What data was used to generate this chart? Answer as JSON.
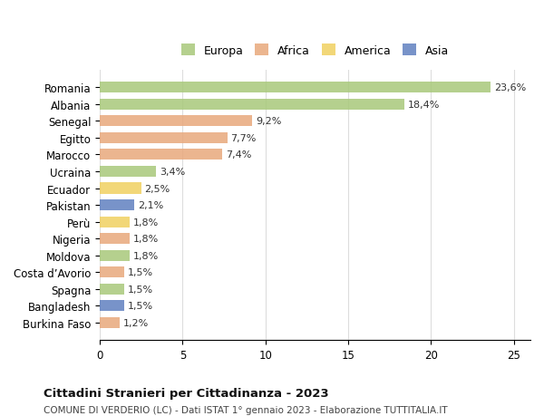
{
  "categories": [
    "Romania",
    "Albania",
    "Senegal",
    "Egitto",
    "Marocco",
    "Ucraina",
    "Ecuador",
    "Pakistan",
    "Perù",
    "Nigeria",
    "Moldova",
    "Costa d’Avorio",
    "Spagna",
    "Bangladesh",
    "Burkina Faso"
  ],
  "values": [
    23.6,
    18.4,
    9.2,
    7.7,
    7.4,
    3.4,
    2.5,
    2.1,
    1.8,
    1.8,
    1.8,
    1.5,
    1.5,
    1.5,
    1.2
  ],
  "labels": [
    "23,6%",
    "18,4%",
    "9,2%",
    "7,7%",
    "7,4%",
    "3,4%",
    "2,5%",
    "2,1%",
    "1,8%",
    "1,8%",
    "1,8%",
    "1,5%",
    "1,5%",
    "1,5%",
    "1,2%"
  ],
  "continents": [
    "Europa",
    "Europa",
    "Africa",
    "Africa",
    "Africa",
    "Europa",
    "America",
    "Asia",
    "America",
    "Africa",
    "Europa",
    "Africa",
    "Europa",
    "Asia",
    "Africa"
  ],
  "colors": {
    "Europa": "#a8c87a",
    "Africa": "#e8a87c",
    "America": "#f0d060",
    "Asia": "#6080c0"
  },
  "legend_order": [
    "Europa",
    "Africa",
    "America",
    "Asia"
  ],
  "xlim": [
    0,
    26
  ],
  "xticks": [
    0,
    5,
    10,
    15,
    20,
    25
  ],
  "title": "Cittadini Stranieri per Cittadinanza - 2023",
  "subtitle": "COMUNE DI VERDERIO (LC) - Dati ISTAT 1° gennaio 2023 - Elaborazione TUTTITALIA.IT",
  "bg_color": "#ffffff",
  "grid_color": "#dddddd",
  "bar_height": 0.65
}
